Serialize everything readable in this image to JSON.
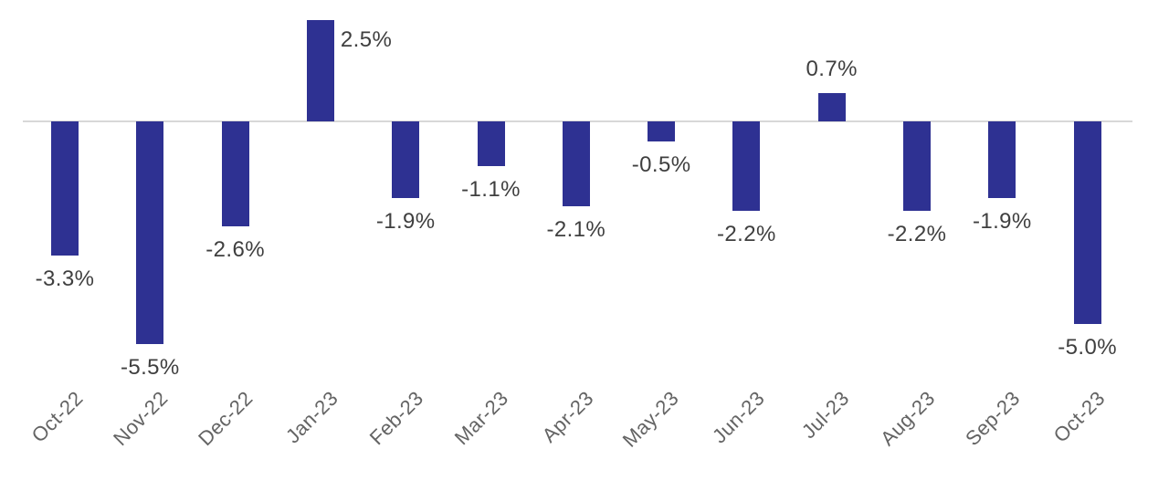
{
  "chart_data": {
    "type": "bar",
    "title": "",
    "xlabel": "",
    "ylabel": "",
    "categories": [
      "Oct-22",
      "Nov-22",
      "Dec-22",
      "Jan-23",
      "Feb-23",
      "Mar-23",
      "Apr-23",
      "May-23",
      "Jun-23",
      "Jul-23",
      "Aug-23",
      "Sep-23",
      "Oct-23"
    ],
    "values": [
      -3.3,
      -5.5,
      -2.6,
      2.5,
      -1.9,
      -1.1,
      -2.1,
      -0.5,
      -2.2,
      0.7,
      -2.2,
      -1.9,
      -5.0
    ],
    "data_labels": [
      "-3.3%",
      "-5.5%",
      "-2.6%",
      "2.5%",
      "-1.9%",
      "-1.1%",
      "-2.1%",
      "-0.5%",
      "-2.2%",
      "0.7%",
      "-2.2%",
      "-1.9%",
      "-5.0%"
    ],
    "ylim": [
      -6,
      3
    ],
    "grid": false,
    "legend": "none",
    "y_axis_visible": false,
    "x_label_rotation_deg": -45,
    "colors": {
      "bar": "#2E3192",
      "data_label": "#3F3F3F",
      "axis_label": "#646464",
      "zero_line": "#D8D8D8",
      "background": "#FFFFFF"
    }
  }
}
